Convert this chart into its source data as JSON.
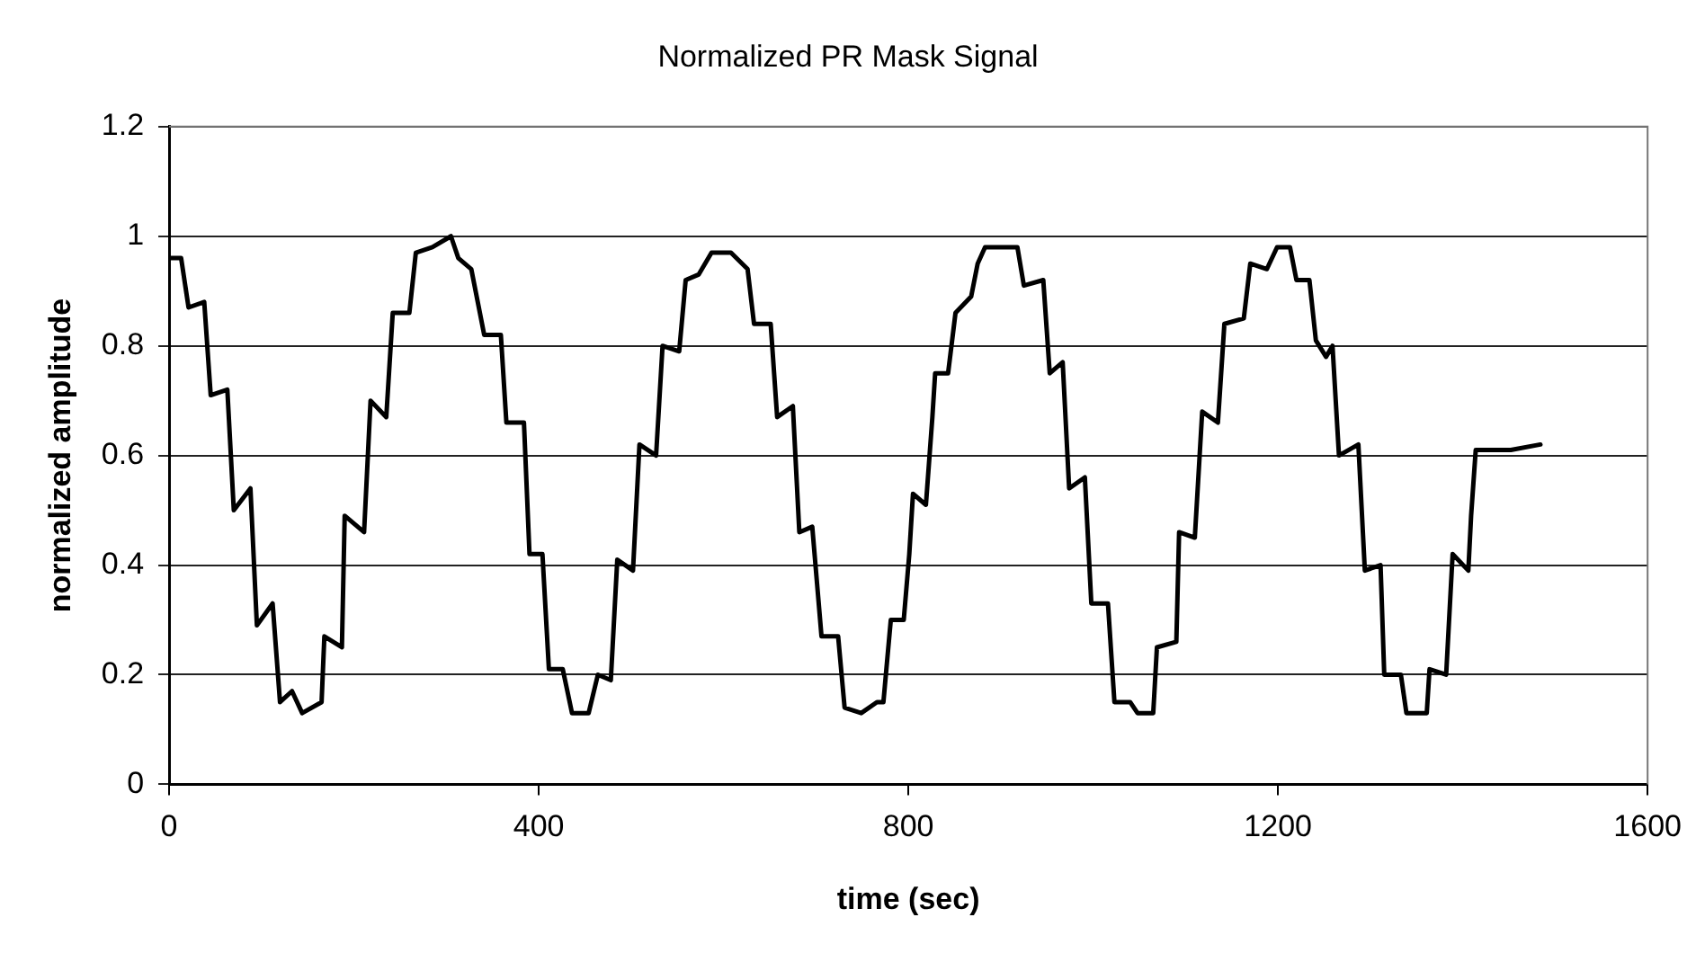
{
  "chart_data": {
    "type": "line",
    "title": "Normalized PR Mask Signal",
    "xlabel": "time (sec)",
    "ylabel": "normalized amplitude",
    "xlim": [
      0,
      1600
    ],
    "xticks": [
      0,
      400,
      800,
      1200,
      1600
    ],
    "ylim": [
      0,
      1.2
    ],
    "yticks": [
      0,
      0.2,
      0.4,
      0.6,
      0.8,
      1,
      1.2
    ],
    "grid": "y",
    "legend": false,
    "marker": "none",
    "line_style": "solid",
    "x": [
      0,
      13,
      21,
      38,
      45,
      63,
      70,
      88,
      95,
      112,
      120,
      133,
      144,
      165,
      168,
      187,
      190,
      211,
      218,
      235,
      242,
      260,
      267,
      285,
      305,
      313,
      327,
      341,
      359,
      365,
      384,
      390,
      404,
      411,
      426,
      436,
      454,
      464,
      478,
      485,
      502,
      509,
      527,
      534,
      552,
      559,
      573,
      587,
      608,
      626,
      633,
      651,
      658,
      675,
      682,
      696,
      706,
      724,
      731,
      749,
      766,
      773,
      781,
      795,
      801,
      805,
      819,
      826,
      829,
      843,
      851,
      868,
      875,
      883,
      918,
      925,
      946,
      953,
      967,
      974,
      991,
      998,
      1016,
      1023,
      1040,
      1048,
      1065,
      1069,
      1090,
      1093,
      1110,
      1118,
      1135,
      1142,
      1163,
      1170,
      1188,
      1199,
      1213,
      1220,
      1234,
      1241,
      1252,
      1259,
      1266,
      1287,
      1294,
      1311,
      1315,
      1333,
      1339,
      1361,
      1364,
      1382,
      1389,
      1406,
      1409,
      1414,
      1431,
      1452,
      1484
    ],
    "series": [
      {
        "color": "#000000",
        "values": [
          0.96,
          0.96,
          0.87,
          0.88,
          0.71,
          0.72,
          0.5,
          0.54,
          0.29,
          0.33,
          0.15,
          0.17,
          0.13,
          0.15,
          0.27,
          0.25,
          0.49,
          0.46,
          0.7,
          0.67,
          0.86,
          0.86,
          0.97,
          0.98,
          1.0,
          0.96,
          0.94,
          0.82,
          0.82,
          0.66,
          0.66,
          0.42,
          0.42,
          0.21,
          0.21,
          0.13,
          0.13,
          0.2,
          0.19,
          0.41,
          0.39,
          0.62,
          0.6,
          0.8,
          0.79,
          0.92,
          0.93,
          0.97,
          0.97,
          0.94,
          0.84,
          0.84,
          0.67,
          0.69,
          0.46,
          0.47,
          0.27,
          0.27,
          0.14,
          0.13,
          0.15,
          0.15,
          0.3,
          0.3,
          0.42,
          0.53,
          0.51,
          0.67,
          0.75,
          0.75,
          0.86,
          0.89,
          0.95,
          0.98,
          0.98,
          0.91,
          0.92,
          0.75,
          0.77,
          0.54,
          0.56,
          0.33,
          0.33,
          0.15,
          0.15,
          0.13,
          0.13,
          0.25,
          0.26,
          0.46,
          0.45,
          0.68,
          0.66,
          0.84,
          0.85,
          0.95,
          0.94,
          0.98,
          0.98,
          0.92,
          0.92,
          0.81,
          0.78,
          0.8,
          0.6,
          0.62,
          0.39,
          0.4,
          0.2,
          0.2,
          0.13,
          0.13,
          0.21,
          0.2,
          0.42,
          0.39,
          0.49,
          0.61,
          0.61,
          0.61,
          0.62
        ]
      }
    ]
  }
}
